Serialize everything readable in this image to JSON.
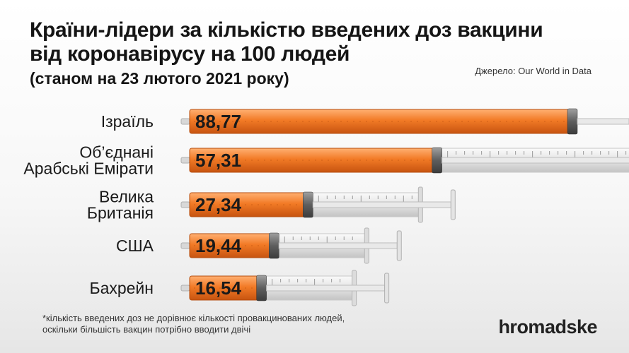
{
  "header": {
    "title_line1": "Країни-лідери за кількістю введених доз вакцини",
    "title_line2": "від коронавірусу на 100 людей",
    "subtitle": "(станом на 23 лютого 2021 року)",
    "source": "Джерело: Our World in Data"
  },
  "chart_data": {
    "type": "bar",
    "orientation": "horizontal",
    "title": "Країни-лідери за кількістю введених доз вакцини від коронавірусу на 100 людей",
    "subtitle": "(станом на 23 лютого 2021 року)",
    "unit": "доз на 100 людей",
    "categories": [
      [
        "Ізраїль"
      ],
      [
        "Об’єднані",
        "Арабські Емірати"
      ],
      [
        "Велика",
        "Британія"
      ],
      [
        "США"
      ],
      [
        "Бахрейн"
      ]
    ],
    "values": [
      88.77,
      57.31,
      27.34,
      19.44,
      16.54
    ],
    "value_labels": [
      "88,77",
      "57,31",
      "27,34",
      "19,44",
      "16,54"
    ],
    "colors": {
      "fill": "#f07c2c",
      "fill_dark": "#c75410",
      "needle": "#47b893",
      "glass": "#e3e3e3",
      "label": "#1a1a1a"
    }
  },
  "footnote": {
    "line1": "*кількість введених доз не дорівнює кількості провакцинованих людей,",
    "line2": "оскільки більшість вакцин потрібно вводити двічі"
  },
  "brand": "hromadske"
}
